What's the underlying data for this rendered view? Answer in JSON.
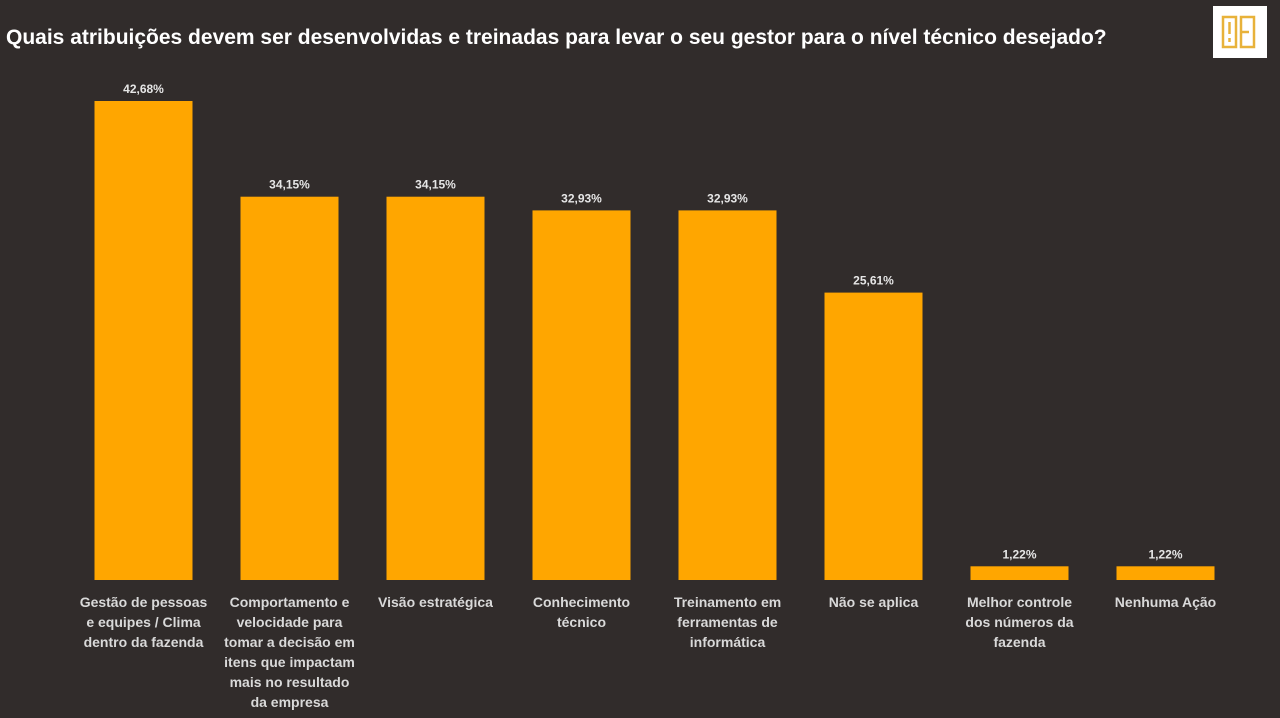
{
  "header": {
    "title": "Quais atribuições devem ser desenvolvidas e treinadas para levar o seu gestor para o nível técnico desejado?"
  },
  "colors": {
    "background": "#312c2b",
    "bar": "#ffa600",
    "logo_accent": "#e8b23a"
  },
  "chart_data": {
    "type": "bar",
    "title": "Quais atribuições devem ser desenvolvidas e treinadas para levar o seu gestor para o nível técnico desejado?",
    "categories": [
      [
        "Gestão de pessoas",
        "e equipes / Clima",
        "dentro da fazenda"
      ],
      [
        "Comportamento e",
        "velocidade para",
        "tomar a decisão em",
        "itens que impactam",
        "mais no resultado",
        "da empresa"
      ],
      [
        "Visão estratégica"
      ],
      [
        "Conhecimento",
        "técnico"
      ],
      [
        "Treinamento em",
        "ferramentas de",
        "informática"
      ],
      [
        "Não se aplica"
      ],
      [
        "Melhor controle",
        "dos números da",
        "fazenda"
      ],
      [
        "Nenhuma Ação"
      ]
    ],
    "values": [
      42.68,
      34.15,
      34.15,
      32.93,
      32.93,
      25.61,
      1.22,
      1.22
    ],
    "value_labels": [
      "42,68%",
      "34,15%",
      "34,15%",
      "32,93%",
      "32,93%",
      "25,61%",
      "1,22%",
      "1,22%"
    ],
    "ylim": [
      0,
      42.68
    ],
    "grid": false,
    "legend": "none"
  }
}
